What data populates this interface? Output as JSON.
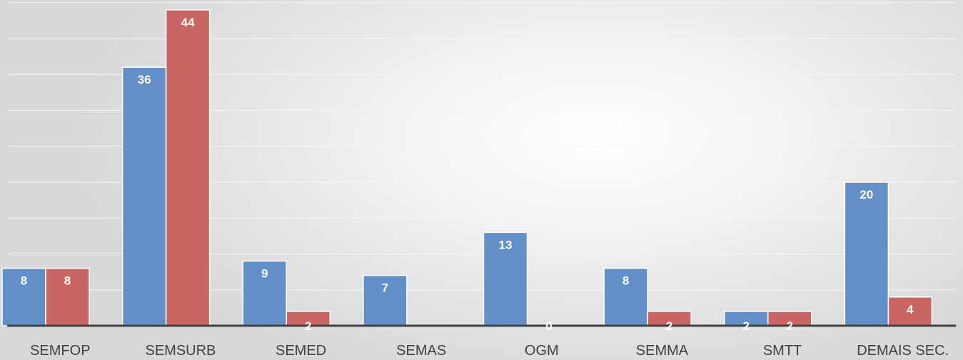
{
  "colors": {
    "series_1": "#628fc7",
    "series_2": "#c96562"
  },
  "chart_data": {
    "type": "bar",
    "categories": [
      "SEMFOP",
      "SEMSURB",
      "SEMED",
      "SEMAS",
      "OGM",
      "SEMMA",
      "SMTT",
      "DEMAIS SEC."
    ],
    "series": [
      {
        "values": [
          8,
          36,
          9,
          7,
          13,
          8,
          2,
          20
        ]
      },
      {
        "values": [
          8,
          44,
          2,
          0,
          0,
          2,
          2,
          4
        ]
      }
    ],
    "data_labels": [
      [
        "8",
        "36",
        "9",
        "7",
        "13",
        "8",
        "2",
        "20"
      ],
      [
        "8",
        "44",
        "2",
        "",
        "0",
        "2",
        "2",
        "4"
      ]
    ],
    "ylim": [
      0,
      45
    ],
    "grid": true,
    "legend": "none"
  }
}
